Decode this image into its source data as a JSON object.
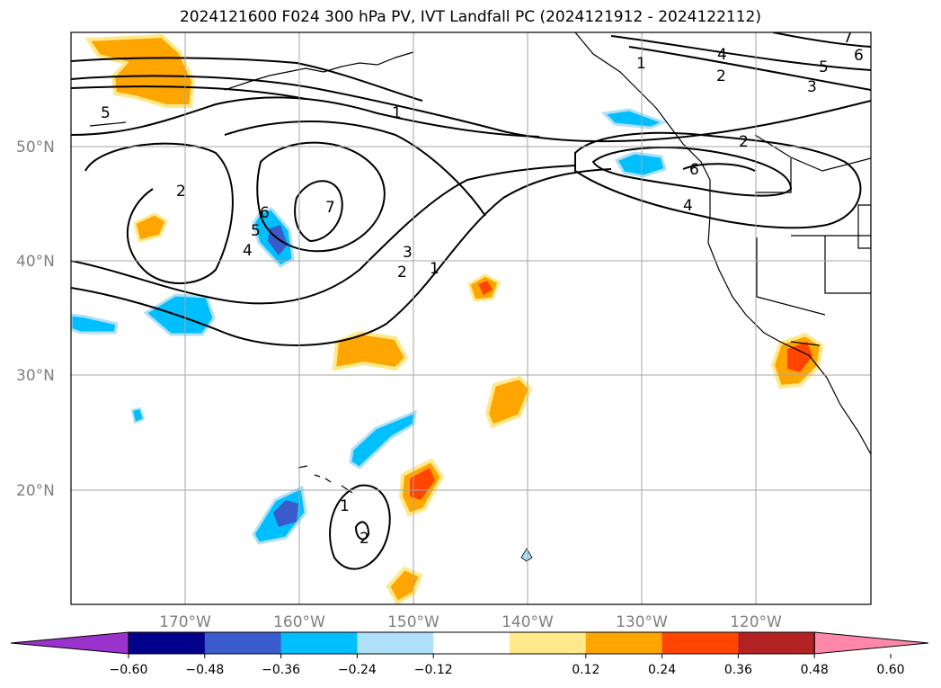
{
  "title": "2024121600 F024 300 hPa PV, IVT Landfall PC (2024121912 - 2024122112)",
  "map": {
    "lat_labels": [
      "50°N",
      "40°N",
      "30°N",
      "20°N"
    ],
    "lon_labels": [
      "170°W",
      "160°W",
      "150°W",
      "140°W",
      "130°W",
      "120°W"
    ],
    "contour_labels": [
      "5",
      "1",
      "2",
      "6",
      "5",
      "4",
      "7",
      "3",
      "2",
      "1",
      "1",
      "4",
      "2",
      "5",
      "3",
      "2",
      "6",
      "4",
      "7",
      "6",
      "1",
      "2"
    ]
  },
  "colorbar": {
    "ticks": [
      "−0.60",
      "−0.48",
      "−0.36",
      "−0.24",
      "−0.12",
      "0.12",
      "0.24",
      "0.36",
      "0.48",
      "0.60"
    ],
    "colors": [
      "#9933cc",
      "#00008b",
      "#3a5bcc",
      "#00bfff",
      "#aee0f7",
      "#ffffff",
      "#ffe98a",
      "#ffa500",
      "#ff4500",
      "#b22222",
      "#ff88aa"
    ]
  }
}
